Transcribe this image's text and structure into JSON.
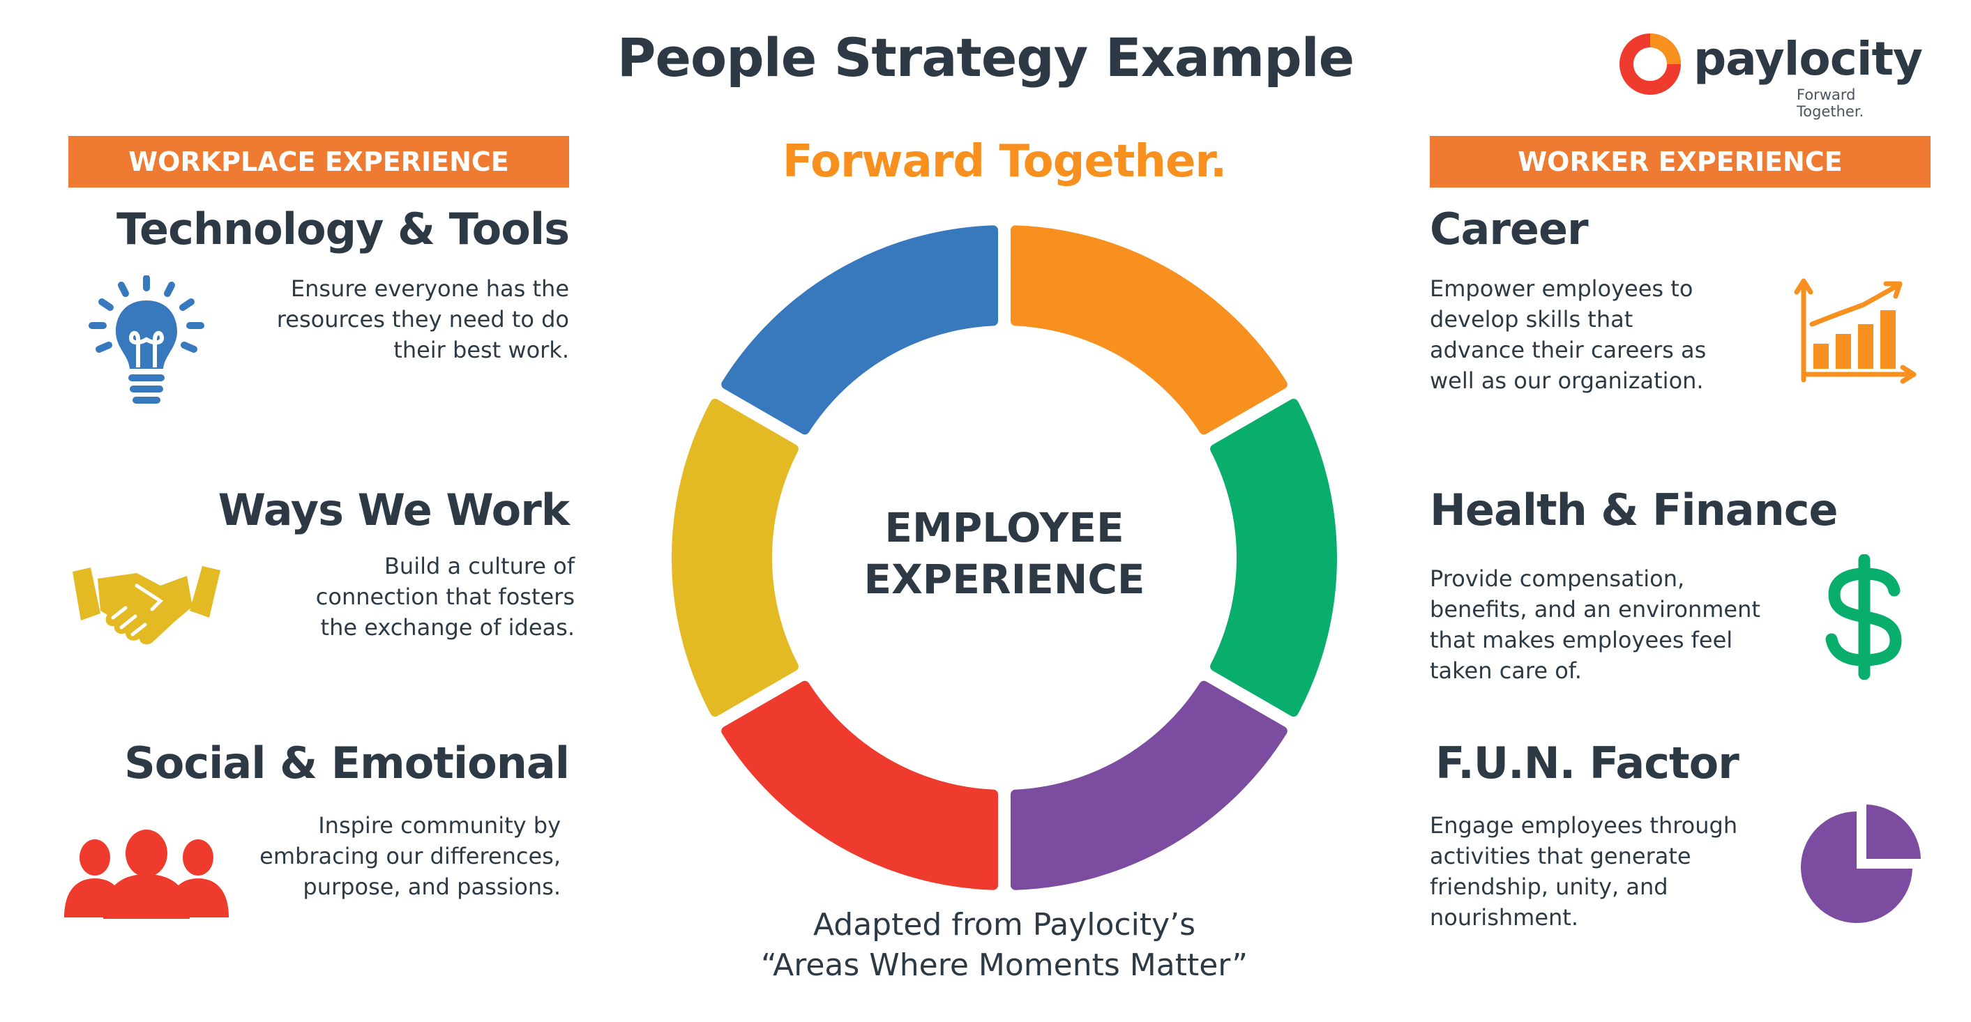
{
  "title": "People Strategy Example",
  "tagline": "Forward Together.",
  "logo": {
    "name": "paylocity",
    "subtitle": "Forward Together."
  },
  "center_label": {
    "line1": "EMPLOYEE",
    "line2": "EXPERIENCE"
  },
  "credit": {
    "line1": "Adapted from Paylocity’s",
    "line2": "“Areas Where Moments Matter”"
  },
  "workplace": {
    "band": "WORKPLACE EXPERIENCE",
    "items": [
      {
        "heading": "Technology & Tools",
        "lines": [
          "Ensure everyone has the",
          "resources they need to do",
          "their best work."
        ],
        "icon": "lightbulb-icon",
        "color": "#3879be"
      },
      {
        "heading": "Ways We Work",
        "lines": [
          "Build a culture of",
          "connection that fosters",
          "the exchange of ideas."
        ],
        "icon": "handshake-icon",
        "color": "#e3ba24"
      },
      {
        "heading": "Social & Emotional",
        "lines": [
          "Inspire community by",
          "embracing our differences,",
          "purpose, and passions."
        ],
        "icon": "people-icon",
        "color": "#ef3b2d"
      }
    ]
  },
  "worker": {
    "band": "WORKER EXPERIENCE",
    "items": [
      {
        "heading": "Career",
        "lines": [
          "Empower employees to",
          "develop skills that",
          "advance their careers as",
          "well as our organization."
        ],
        "icon": "growth-chart-icon",
        "color": "#f7901e"
      },
      {
        "heading": "Health & Finance",
        "lines": [
          "Provide compensation,",
          "benefits, and an environment",
          "that makes employees feel",
          "taken care of."
        ],
        "icon": "dollar-icon",
        "color": "#0aae6c"
      },
      {
        "heading": "F.U.N. Factor",
        "lines": [
          "Engage employees through",
          "activities that generate",
          "friendship, unity, and",
          "nourishment."
        ],
        "icon": "pie-chart-icon",
        "color": "#7b4c9f"
      }
    ]
  },
  "ring_colors": [
    "#3879be",
    "#f7901e",
    "#0aae6c",
    "#7b4c9f",
    "#ef3b2d",
    "#e3ba24"
  ],
  "accent": "#ee7b31"
}
